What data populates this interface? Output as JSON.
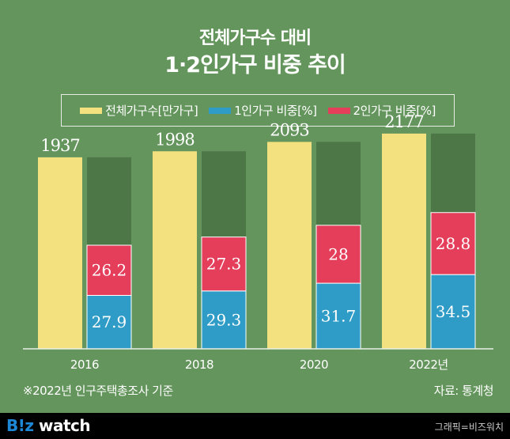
{
  "title_line1": "전체가구수 대비",
  "title_line2": "1·2인가구 비중 추이",
  "chart_data": {
    "type": "bar",
    "categories": [
      "2016",
      "2018",
      "2020",
      "2022년"
    ],
    "series": [
      {
        "name": "전체가구수[만가구]",
        "values": [
          1937,
          1998,
          2093,
          2177
        ],
        "color": "#f2e17e"
      },
      {
        "name": "1인가구 비중[%]",
        "values": [
          27.9,
          29.3,
          31.7,
          34.5
        ],
        "color": "#2e9cc6"
      },
      {
        "name": "2인가구 비중[%]",
        "values": [
          26.2,
          27.3,
          28.0,
          28.8
        ],
        "color": "#e43e5b"
      }
    ],
    "share_background_color": "#4e7748",
    "ylim": [
      0,
      2400
    ],
    "grid": false,
    "legend": "top"
  },
  "note": "※2022년 인구주택총조사 기준",
  "source": "자료: 통계청",
  "footer": {
    "logo_b": "B!z",
    "logo_rest": " watch",
    "credit": "그래픽=비즈워치"
  }
}
